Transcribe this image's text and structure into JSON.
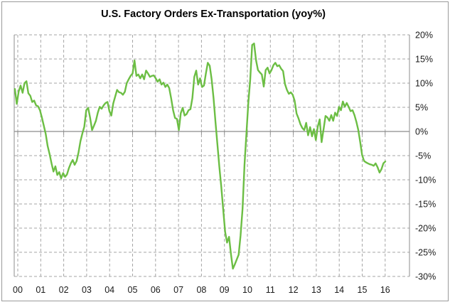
{
  "chart_data": {
    "type": "line",
    "title": "U.S. Factory Orders Ex-Transportation (yoy%)",
    "xlabel": "",
    "ylabel": "",
    "x_tick_labels": [
      "00",
      "01",
      "02",
      "03",
      "04",
      "05",
      "06",
      "07",
      "08",
      "09",
      "10",
      "11",
      "12",
      "13",
      "14",
      "15",
      "16"
    ],
    "y_ticks": [
      20,
      15,
      10,
      5,
      0,
      -5,
      -10,
      -15,
      -20,
      -25,
      -30
    ],
    "y_tick_labels": [
      "20%",
      "15%",
      "10%",
      "5%",
      "0%",
      "-5%",
      "-10%",
      "-15%",
      "-20%",
      "-25%",
      "-30%"
    ],
    "ylim": [
      -30,
      20
    ],
    "x_start": "2000-01",
    "x_end": "2016-01",
    "frequency": "monthly",
    "grid": "dashed",
    "legend_position": "none",
    "line_color": "#6cbe44",
    "grid_color": "#a6a6a6",
    "axis_color": "#8c8c8c",
    "series": [
      {
        "name": "U.S. Factory Orders Ex-Transportation yoy %",
        "values": [
          8.8,
          5.7,
          8.3,
          9.5,
          8.0,
          10.0,
          10.4,
          7.9,
          7.4,
          6.1,
          6.4,
          5.4,
          5.2,
          4.4,
          2.9,
          1.2,
          -0.5,
          -3.0,
          -4.7,
          -6.6,
          -8.3,
          -7.2,
          -9.0,
          -8.4,
          -9.7,
          -8.6,
          -9.4,
          -8.9,
          -7.6,
          -6.6,
          -5.9,
          -6.9,
          -6.1,
          -4.3,
          -2.0,
          -0.4,
          1.0,
          4.4,
          4.9,
          2.9,
          0.3,
          1.2,
          2.2,
          3.9,
          5.1,
          4.7,
          5.4,
          5.9,
          6.1,
          4.2,
          3.3,
          5.8,
          7.2,
          8.6,
          8.1,
          8.0,
          7.6,
          8.2,
          10.0,
          10.8,
          11.5,
          12.0,
          14.7,
          11.5,
          11.8,
          11.0,
          11.8,
          10.8,
          12.6,
          12.0,
          11.3,
          11.5,
          11.6,
          11.0,
          10.3,
          10.8,
          9.7,
          10.1,
          9.2,
          9.7,
          9.0,
          6.9,
          4.4,
          2.8,
          2.6,
          0.3,
          3.8,
          4.9,
          3.3,
          3.6,
          4.4,
          4.6,
          6.9,
          11.3,
          12.6,
          9.7,
          11.0,
          9.2,
          9.5,
          12.0,
          14.2,
          13.6,
          10.8,
          6.9,
          1.8,
          -2.8,
          -7.4,
          -11.5,
          -16.2,
          -20.8,
          -23.0,
          -21.8,
          -25.4,
          -28.4,
          -27.5,
          -26.5,
          -25.5,
          -21.5,
          -16.0,
          -7.0,
          -0.5,
          5.9,
          10.8,
          17.9,
          18.2,
          14.7,
          12.7,
          12.2,
          11.8,
          9.3,
          12.7,
          13.2,
          12.0,
          12.7,
          13.7,
          14.2,
          13.5,
          13.7,
          13.0,
          12.5,
          9.8,
          8.6,
          7.8,
          8.1,
          7.6,
          6.4,
          3.7,
          2.7,
          1.5,
          0.7,
          0.3,
          1.8,
          -0.8,
          0.9,
          -1.0,
          0.5,
          -1.8,
          1.0,
          2.5,
          -2.2,
          0.5,
          3.2,
          2.9,
          2.2,
          3.4,
          2.2,
          3.9,
          3.2,
          5.1,
          4.4,
          6.2,
          5.1,
          5.9,
          5.1,
          4.2,
          4.4,
          3.4,
          2.0,
          0.3,
          -2.2,
          -4.9,
          -6.1,
          -6.4,
          -6.6,
          -6.8,
          -6.9,
          -7.1,
          -6.6,
          -7.4,
          -8.5,
          -7.8,
          -6.6,
          -6.2
        ]
      }
    ]
  }
}
